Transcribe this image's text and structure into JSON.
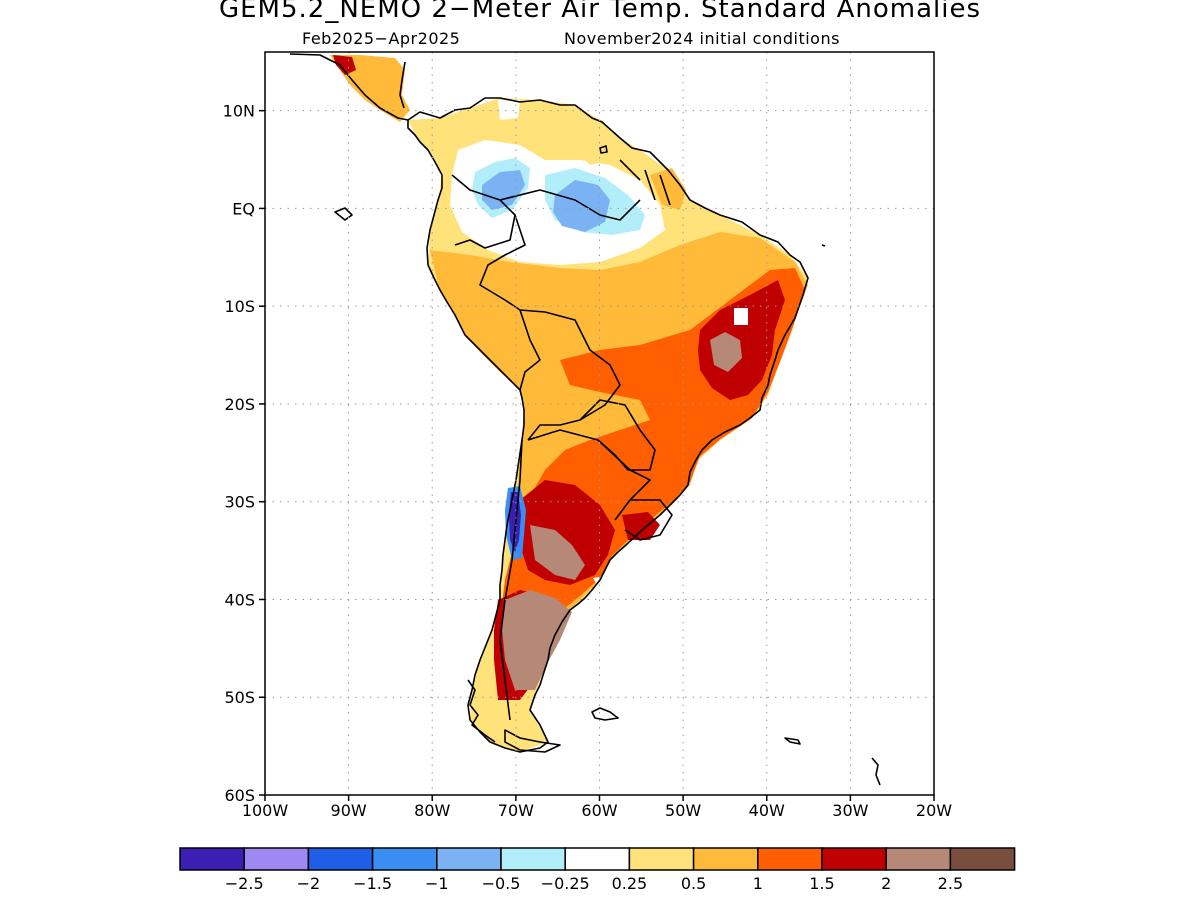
{
  "header": {
    "title": "GEM5.2_NEMO 2−Meter Air Temp. Standard Anomalies",
    "period": "Feb2025−Apr2025",
    "init": "November2024 initial conditions"
  },
  "axes": {
    "lat_labels": [
      "10N",
      "EQ",
      "10S",
      "20S",
      "30S",
      "40S",
      "50S",
      "60S"
    ],
    "lon_labels": [
      "100W",
      "90W",
      "80W",
      "70W",
      "60W",
      "50W",
      "40W",
      "30W",
      "20W"
    ],
    "lat_values": [
      10,
      0,
      -10,
      -20,
      -30,
      -40,
      -50,
      -60
    ],
    "lon_values": [
      -100,
      -90,
      -80,
      -70,
      -60,
      -50,
      -40,
      -30,
      -20
    ],
    "lat_range": [
      -60,
      16
    ],
    "lon_range": [
      -100,
      -20
    ],
    "grid": "dotted"
  },
  "legend": {
    "colors": [
      "#3b1fb5",
      "#a088f2",
      "#1f5fe8",
      "#3a8ef2",
      "#7ab2f4",
      "#b2eefa",
      "#ffffff",
      "#ffe37a",
      "#ffba3a",
      "#ff5f00",
      "#c00000",
      "#b58878",
      "#7a4e3e"
    ],
    "labels": [
      "−2.5",
      "−2",
      "−1.5",
      "−1",
      "−0.5",
      "−0.25",
      "0.25",
      "0.5",
      "1",
      "1.5",
      "2",
      "2.5"
    ]
  },
  "palette": {
    "coast": "#000000",
    "grid": "#9a9a9a"
  }
}
